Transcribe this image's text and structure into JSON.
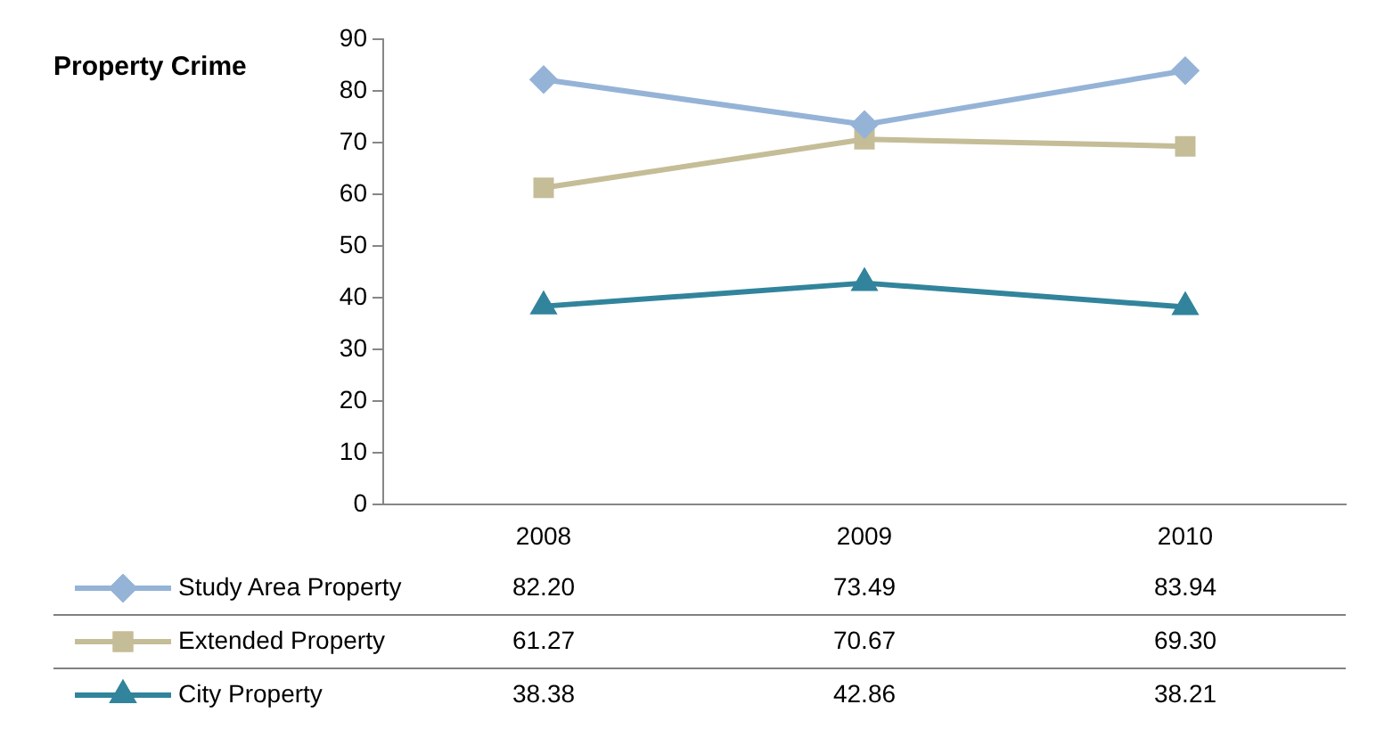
{
  "chart_data": {
    "type": "line",
    "title": "Property Crime",
    "categories": [
      "2008",
      "2009",
      "2010"
    ],
    "series": [
      {
        "name": "Study Area Property",
        "color": "#95b3d7",
        "marker": "diamond",
        "values": [
          82.2,
          73.49,
          83.94
        ],
        "value_labels": [
          "82.20",
          "73.49",
          "83.94"
        ]
      },
      {
        "name": "Extended Property",
        "color": "#c4bd97",
        "marker": "square",
        "values": [
          61.27,
          70.67,
          69.3
        ],
        "value_labels": [
          "61.27",
          "70.67",
          "69.30"
        ]
      },
      {
        "name": "City Property",
        "color": "#31849b",
        "marker": "triangle",
        "values": [
          38.38,
          42.86,
          38.21
        ],
        "value_labels": [
          "38.38",
          "42.86",
          "38.21"
        ]
      }
    ],
    "ylim": [
      0,
      90
    ],
    "yticks": [
      0,
      10,
      20,
      30,
      40,
      50,
      60,
      70,
      80,
      90
    ],
    "grid": false,
    "legend": "bottom"
  }
}
